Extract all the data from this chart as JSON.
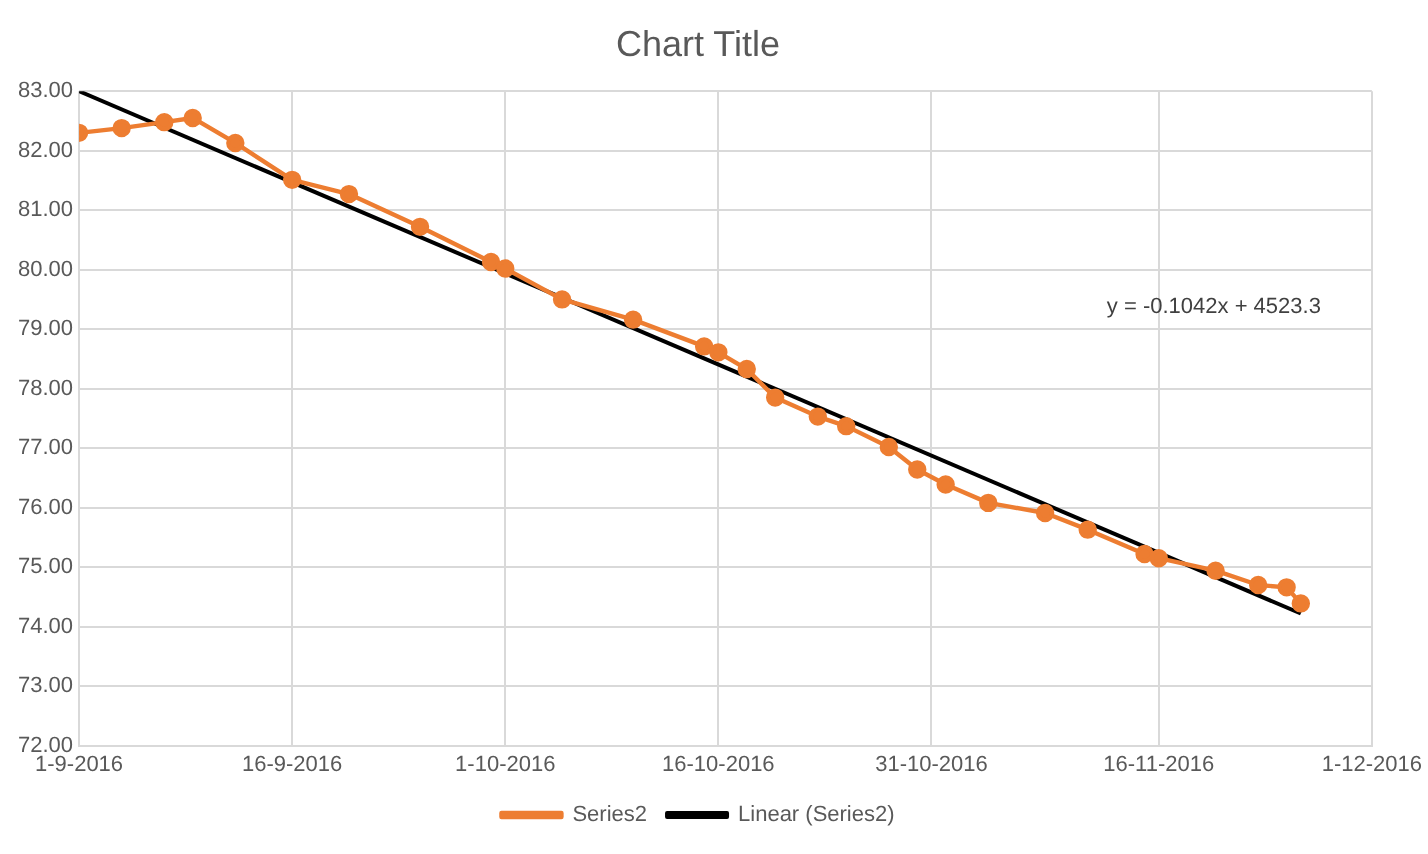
{
  "chart_data": {
    "type": "line",
    "title": "Chart Title",
    "x": [
      "2016-09-01",
      "2016-09-04",
      "2016-09-07",
      "2016-09-09",
      "2016-09-12",
      "2016-09-16",
      "2016-09-20",
      "2016-09-25",
      "2016-09-30",
      "2016-10-01",
      "2016-10-05",
      "2016-10-10",
      "2016-10-15",
      "2016-10-16",
      "2016-10-18",
      "2016-10-20",
      "2016-10-23",
      "2016-10-25",
      "2016-10-28",
      "2016-10-30",
      "2016-11-01",
      "2016-11-04",
      "2016-11-08",
      "2016-11-11",
      "2016-11-15",
      "2016-11-16",
      "2016-11-20",
      "2016-11-23",
      "2016-11-25",
      "2016-11-26"
    ],
    "series": [
      {
        "name": "Series2",
        "color": "#ed7d31",
        "marker": "circle",
        "values": [
          82.3,
          82.38,
          82.48,
          82.55,
          82.13,
          81.51,
          81.27,
          80.72,
          80.13,
          80.02,
          79.5,
          79.16,
          78.71,
          78.61,
          78.33,
          77.85,
          77.53,
          77.37,
          77.02,
          76.64,
          76.39,
          76.08,
          75.91,
          75.63,
          75.22,
          75.15,
          74.94,
          74.7,
          74.66,
          74.39
        ]
      },
      {
        "name": "Linear (Series2)",
        "type": "line",
        "color": "#000000",
        "marker": "none",
        "x": [
          "2016-09-01",
          "2016-11-26"
        ],
        "values": [
          83.0,
          74.22
        ]
      }
    ],
    "xlim": [
      "2016-09-01",
      "2016-12-01"
    ],
    "xticks": [
      {
        "value": "2016-09-01",
        "label": "1-9-2016"
      },
      {
        "value": "2016-09-16",
        "label": "16-9-2016"
      },
      {
        "value": "2016-10-01",
        "label": "1-10-2016"
      },
      {
        "value": "2016-10-16",
        "label": "16-10-2016"
      },
      {
        "value": "2016-10-31",
        "label": "31-10-2016"
      },
      {
        "value": "2016-11-16",
        "label": "16-11-2016"
      },
      {
        "value": "2016-12-01",
        "label": "1-12-2016"
      }
    ],
    "ylim": [
      72,
      83
    ],
    "yticks": [
      {
        "value": 72,
        "label": "72.00"
      },
      {
        "value": 73,
        "label": "73.00"
      },
      {
        "value": 74,
        "label": "74.00"
      },
      {
        "value": 75,
        "label": "75.00"
      },
      {
        "value": 76,
        "label": "76.00"
      },
      {
        "value": 77,
        "label": "77.00"
      },
      {
        "value": 78,
        "label": "78.00"
      },
      {
        "value": 79,
        "label": "79.00"
      },
      {
        "value": 80,
        "label": "80.00"
      },
      {
        "value": 81,
        "label": "81.00"
      },
      {
        "value": 82,
        "label": "82.00"
      },
      {
        "value": 83,
        "label": "83.00"
      }
    ],
    "annotations": [
      "y = -0.1042x + 4523.3"
    ],
    "grid": true,
    "legend": "bottom"
  }
}
